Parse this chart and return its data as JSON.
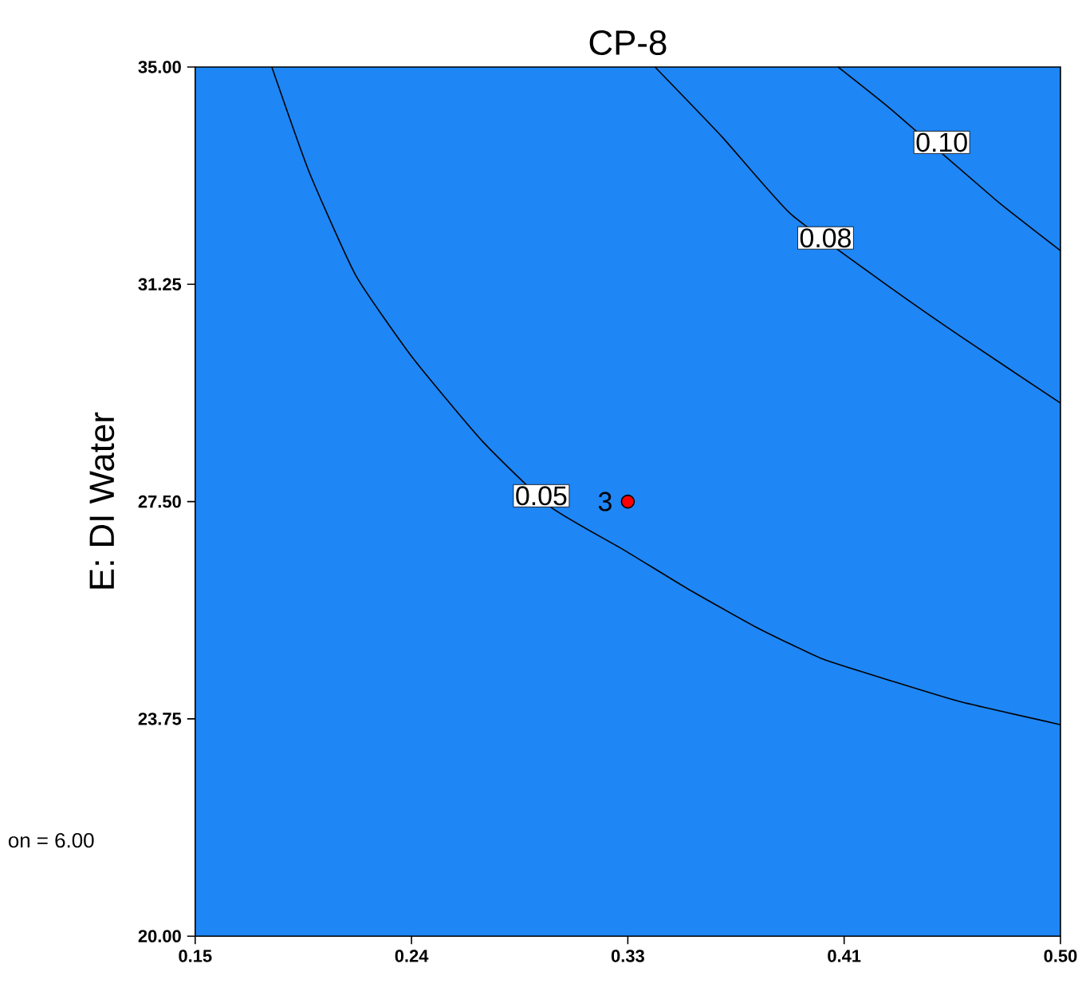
{
  "chart_data": {
    "type": "line",
    "title": "CP-8",
    "ylabel": "E: DI Water",
    "xlim": [
      0.15,
      0.5
    ],
    "ylim": [
      20,
      35
    ],
    "xticks": [
      {
        "value": 0.15,
        "label": "0.15"
      },
      {
        "value": 0.2375,
        "label": "0.24"
      },
      {
        "value": 0.325,
        "label": "0.33"
      },
      {
        "value": 0.4125,
        "label": "0.41"
      },
      {
        "value": 0.5,
        "label": "0.50"
      }
    ],
    "yticks": [
      {
        "value": 20,
        "label": "20.00"
      },
      {
        "value": 23.75,
        "label": "23.75"
      },
      {
        "value": 27.5,
        "label": "27.50"
      },
      {
        "value": 31.25,
        "label": "31.25"
      },
      {
        "value": 35,
        "label": "35.00"
      }
    ],
    "series": [
      {
        "color": "#000000",
        "x": [
          0.181,
          0.196,
          0.215,
          0.238,
          0.266,
          0.294,
          0.324,
          0.349,
          0.377,
          0.404,
          0.432,
          0.46,
          0.5
        ],
        "values": [
          35,
          33.2,
          31.4,
          29.98,
          28.55,
          27.4,
          26.65,
          26.0,
          25.33,
          24.78,
          24.4,
          24.04,
          23.65
        ]
      },
      {
        "color": "#000000",
        "x": [
          0.336,
          0.363,
          0.391,
          0.432,
          0.46,
          0.5
        ],
        "values": [
          35,
          33.8,
          32.46,
          31.17,
          30.34,
          29.2
        ]
      },
      {
        "color": "#000000",
        "x": [
          0.41,
          0.432,
          0.474,
          0.5
        ],
        "values": [
          35,
          34.25,
          32.7,
          31.83
        ]
      },
      {
        "type": "scatter",
        "marker": "circle",
        "color": "#ff0000",
        "x": [
          0.325
        ],
        "values": [
          27.5
        ]
      }
    ],
    "annotations": [
      {
        "text": "0.05",
        "x": 0.29,
        "y": 27.6
      },
      {
        "text": "0.08",
        "x": 0.405,
        "y": 32.05
      },
      {
        "text": "0.10",
        "x": 0.452,
        "y": 33.7
      },
      "3",
      "on = 6.00"
    ]
  }
}
